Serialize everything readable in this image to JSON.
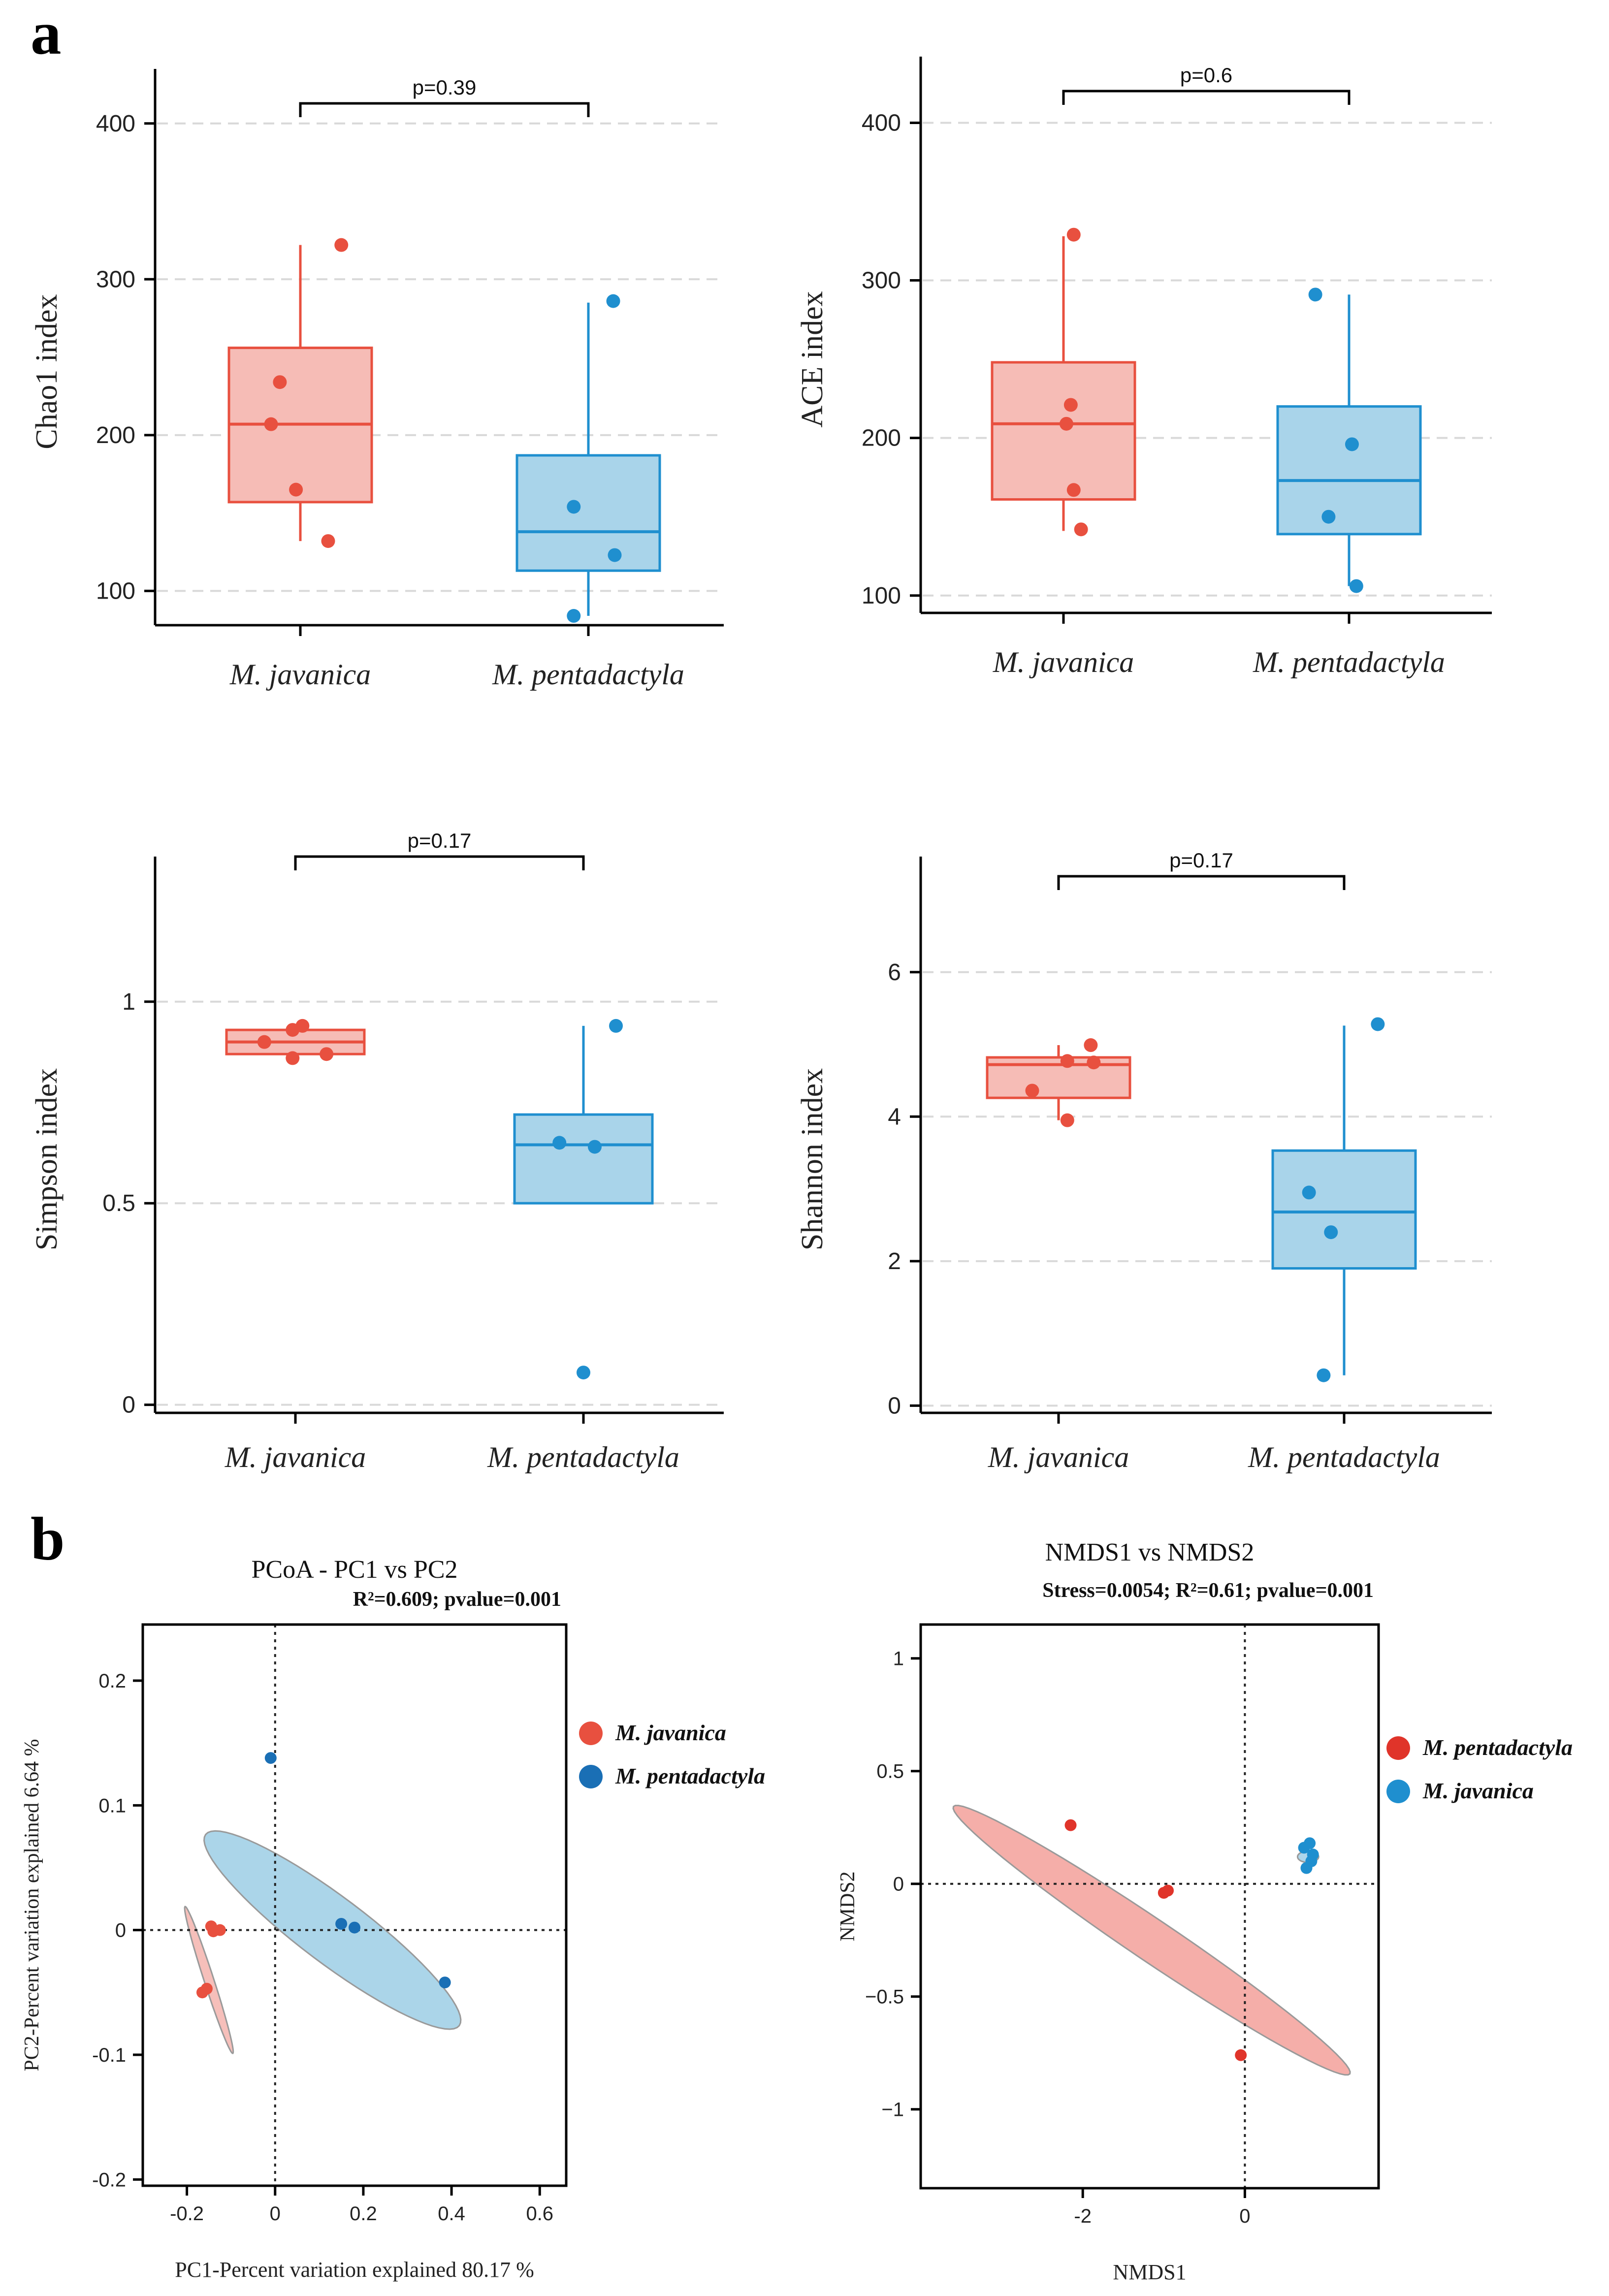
{
  "figure": {
    "panel_a_label": "a",
    "panel_b_label": "b"
  },
  "colors": {
    "javanica": "#e8503f",
    "javanica_fill": "#f6bcb6",
    "pentadactyla": "#1f8fcf",
    "pentadactyla_fill": "#a9d4ea",
    "nmds_red_fill": "#f4aaa4",
    "nmds_red_point": "#e0342a",
    "pcoa_blue_fill": "#a6d3e8",
    "pcoa_blue_point": "#1a6fb5",
    "axis": "#000000",
    "grid": "#d9d9d9"
  },
  "chart_data": [
    {
      "id": "chao1",
      "type": "box",
      "ylabel": "Chao1 index",
      "ylim": [
        78,
        435
      ],
      "yticks": [
        100,
        200,
        300,
        400
      ],
      "grid": true,
      "pvalue_text": "p=0.39",
      "categories": [
        "M. javanica",
        "M. pentadactyla"
      ],
      "groups": [
        {
          "name": "M. javanica",
          "color_key": "javanica",
          "q1": 157,
          "median": 207,
          "q3": 256,
          "whisker_low": 132,
          "whisker_high": 322,
          "points": [
            [
              0.28,
              322
            ],
            [
              -0.14,
              234
            ],
            [
              -0.2,
              207
            ],
            [
              -0.03,
              165
            ],
            [
              0.19,
              132
            ]
          ]
        },
        {
          "name": "M. pentadactyla",
          "color_key": "pentadactyla",
          "q1": 113,
          "median": 138,
          "q3": 187,
          "whisker_low": 84,
          "whisker_high": 285,
          "points": [
            [
              0.17,
              286
            ],
            [
              -0.1,
              154
            ],
            [
              0.18,
              123
            ],
            [
              -0.1,
              84
            ]
          ]
        }
      ]
    },
    {
      "id": "ace",
      "type": "box",
      "ylabel": "ACE index",
      "ylim": [
        89,
        442
      ],
      "yticks": [
        100,
        200,
        300,
        400
      ],
      "grid": true,
      "pvalue_text": "p=0.6",
      "categories": [
        "M. javanica",
        "M. pentadactyla"
      ],
      "groups": [
        {
          "name": "M. javanica",
          "color_key": "javanica",
          "q1": 161,
          "median": 209,
          "q3": 248,
          "whisker_low": 141,
          "whisker_high": 328,
          "points": [
            [
              0.07,
              329
            ],
            [
              0.05,
              221
            ],
            [
              0.02,
              209
            ],
            [
              0.07,
              167
            ],
            [
              0.12,
              142
            ]
          ]
        },
        {
          "name": "M. pentadactyla",
          "color_key": "pentadactyla",
          "q1": 139,
          "median": 173,
          "q3": 220,
          "whisker_low": 106,
          "whisker_high": 291,
          "points": [
            [
              -0.23,
              291
            ],
            [
              0.02,
              196
            ],
            [
              -0.14,
              150
            ],
            [
              0.05,
              106
            ]
          ]
        }
      ]
    },
    {
      "id": "simpson",
      "type": "box",
      "ylabel": "Simpson index",
      "ylim": [
        -0.02,
        1.36
      ],
      "yticks": [
        0,
        0.5,
        1
      ],
      "ytick_labels": [
        "0",
        "0.5",
        "1"
      ],
      "grid": true,
      "pvalue_text": "p=0.17",
      "categories": [
        "M. javanica",
        "M. pentadactyla"
      ],
      "groups": [
        {
          "name": "M. javanica",
          "color_key": "javanica",
          "q1": 0.87,
          "median": 0.9,
          "q3": 0.93,
          "whisker_low": 0.86,
          "whisker_high": 0.94,
          "points": [
            [
              0.05,
              0.94
            ],
            [
              -0.02,
              0.93
            ],
            [
              -0.22,
              0.9
            ],
            [
              -0.02,
              0.86
            ],
            [
              0.22,
              0.87
            ]
          ]
        },
        {
          "name": "M. pentadactyla",
          "color_key": "pentadactyla",
          "q1": 0.5,
          "median": 0.645,
          "q3": 0.72,
          "whisker_low": 0.5,
          "whisker_high": 0.94,
          "points": [
            [
              0.23,
              0.94
            ],
            [
              -0.17,
              0.65
            ],
            [
              0.08,
              0.64
            ],
            [
              0.0,
              0.08
            ]
          ]
        }
      ]
    },
    {
      "id": "shannon",
      "type": "box",
      "ylabel": "Shannon index",
      "ylim": [
        -0.1,
        7.6
      ],
      "yticks": [
        0,
        2,
        4,
        6
      ],
      "grid": true,
      "pvalue_text": "p=0.17",
      "categories": [
        "M. javanica",
        "M. pentadactyla"
      ],
      "groups": [
        {
          "name": "M. javanica",
          "color_key": "javanica",
          "q1": 4.26,
          "median": 4.72,
          "q3": 4.82,
          "whisker_low": 3.95,
          "whisker_high": 4.99,
          "points": [
            [
              0.22,
              4.99
            ],
            [
              0.06,
              4.77
            ],
            [
              0.24,
              4.75
            ],
            [
              -0.18,
              4.36
            ],
            [
              0.06,
              3.95
            ]
          ]
        },
        {
          "name": "M. pentadactyla",
          "color_key": "pentadactyla",
          "q1": 1.9,
          "median": 2.68,
          "q3": 3.53,
          "whisker_low": 0.42,
          "whisker_high": 5.26,
          "points": [
            [
              0.23,
              5.28
            ],
            [
              -0.24,
              2.95
            ],
            [
              -0.09,
              2.4
            ],
            [
              -0.14,
              0.42
            ]
          ]
        }
      ]
    },
    {
      "id": "pcoa",
      "type": "scatter",
      "title": "PCoA - PC1 vs PC2",
      "annotation": "R²=0.609; pvalue=0.001",
      "xlabel": "PC1-Percent variation explained 80.17 %",
      "ylabel": "PC2-Percent variation explained 6.64 %",
      "xlim": [
        -0.3,
        0.66
      ],
      "ylim": [
        -0.205,
        0.245
      ],
      "xticks": [
        -0.2,
        0,
        0.2,
        0.4,
        0.6
      ],
      "xtick_labels": [
        "-0.2",
        "0",
        "0.2",
        "0.4",
        "0.6"
      ],
      "yticks": [
        -0.2,
        -0.1,
        0,
        0.1,
        0.2
      ],
      "ytick_labels": [
        "-0.2",
        "-0.1",
        "0",
        "0.1",
        "0.2"
      ],
      "legend_position": "right",
      "series": [
        {
          "name": "M. javanica",
          "point_color_key": "javanica",
          "ellipse_color_key": "javanica_fill",
          "ellipse": {
            "cx": -0.15,
            "cy": -0.04,
            "rx": 0.175,
            "ry": 0.011,
            "angle_deg": -72
          },
          "points": [
            [
              -0.145,
              0.003
            ],
            [
              -0.14,
              -0.001
            ],
            [
              -0.125,
              0.0
            ],
            [
              -0.165,
              -0.05
            ],
            [
              -0.155,
              -0.047
            ]
          ]
        },
        {
          "name": "M. pentadactyla",
          "point_color_key": "pcoa_blue_point",
          "ellipse_color_key": "pcoa_blue_fill",
          "ellipse": {
            "cx": 0.13,
            "cy": 0.0,
            "rx": 0.36,
            "ry": 0.075,
            "angle_deg": -37
          },
          "points": [
            [
              -0.01,
              0.138
            ],
            [
              0.15,
              0.005
            ],
            [
              0.18,
              0.002
            ],
            [
              0.385,
              -0.042
            ]
          ]
        }
      ]
    },
    {
      "id": "nmds",
      "type": "scatter",
      "title": "NMDS1 vs NMDS2",
      "annotation": "Stress=0.0054; R²=0.61; pvalue=0.001",
      "xlabel": "NMDS1",
      "ylabel": "NMDS2",
      "xlim": [
        -4.0,
        1.65
      ],
      "ylim": [
        -1.35,
        1.15
      ],
      "xticks": [
        -2,
        0
      ],
      "xtick_labels": [
        "-2",
        "0"
      ],
      "yticks": [
        -1,
        -0.5,
        0,
        0.5,
        1
      ],
      "ytick_labels": [
        "−1",
        "−0.5",
        "0",
        "0.5",
        "1"
      ],
      "legend_position": "right",
      "series": [
        {
          "name": "M. pentadactyla",
          "point_color_key": "nmds_red_point",
          "ellipse_color_key": "nmds_red_fill",
          "ellipse": {
            "cx": -1.15,
            "cy": -0.25,
            "rx": 2.95,
            "ry": 0.26,
            "angle_deg": -34
          },
          "points": [
            [
              -2.15,
              0.26
            ],
            [
              -1.0,
              -0.04
            ],
            [
              -0.95,
              -0.03
            ],
            [
              -0.05,
              -0.76
            ]
          ]
        },
        {
          "name": "M. javanica",
          "point_color_key": "pentadactyla",
          "ellipse_color_key": "pentadactyla_fill",
          "ellipse": {
            "cx": 0.78,
            "cy": 0.12,
            "rx": 0.13,
            "ry": 0.07,
            "angle_deg": 0
          },
          "points": [
            [
              0.73,
              0.16
            ],
            [
              0.8,
              0.18
            ],
            [
              0.82,
              0.1
            ],
            [
              0.76,
              0.07
            ],
            [
              0.84,
              0.13
            ]
          ]
        }
      ]
    }
  ]
}
